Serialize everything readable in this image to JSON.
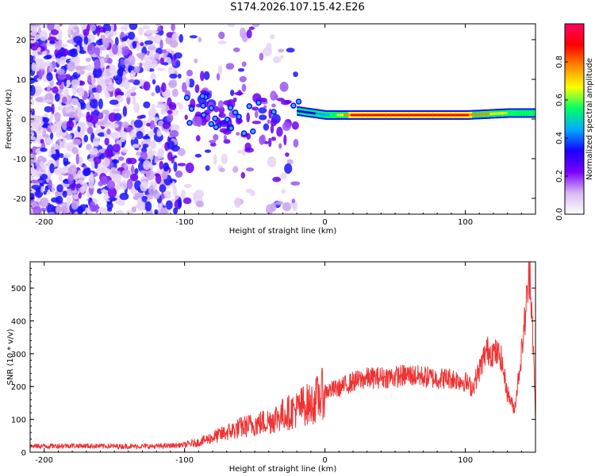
{
  "title": "S174.2026.107.15.42.E26",
  "chart_data": [
    {
      "type": "heatmap",
      "xlabel": "Height of straight line (km)",
      "ylabel": "Frequency (Hz)",
      "xlim": [
        -210,
        150
      ],
      "ylim": [
        -24,
        24
      ],
      "x_ticks": [
        -200,
        -100,
        0,
        100
      ],
      "y_ticks": [
        -20,
        -10,
        0,
        10,
        20
      ],
      "colorbar": {
        "label": "Normalized spectral amplitude",
        "range": [
          0.0,
          1.0
        ],
        "ticks": [
          "0.0",
          "0.2",
          "0.4",
          "0.6",
          "0.8"
        ],
        "colors": [
          "#ffffff",
          "#d8b8f0",
          "#7a00ff",
          "#1a00ff",
          "#00aaff",
          "#00ff66",
          "#ffff00",
          "#ff8800",
          "#ff0000",
          "#ff0066"
        ]
      },
      "ridge": {
        "description": "strong narrow band near 1 Hz",
        "x": [
          -20,
          0,
          20,
          60,
          100,
          130,
          150
        ],
        "freq_hz": [
          2,
          1,
          1,
          1,
          1,
          1.5,
          1.5
        ],
        "amplitude": [
          0.3,
          0.45,
          0.9,
          0.9,
          0.85,
          0.6,
          0.5
        ]
      },
      "noise_region": {
        "x_range": [
          -210,
          -20
        ],
        "freq_range_hz": [
          -24,
          24
        ]
      }
    },
    {
      "type": "line",
      "xlabel": "Height of straight line (km)",
      "ylabel": "SNR (10 * v/v)",
      "xlim": [
        -210,
        150
      ],
      "ylim": [
        0,
        580
      ],
      "x_ticks": [
        -200,
        -100,
        0,
        100
      ],
      "y_ticks": [
        0,
        100,
        200,
        300,
        400,
        500
      ],
      "color": "#ee3333",
      "series": [
        {
          "name": "SNR",
          "x": [
            -210,
            -180,
            -150,
            -120,
            -100,
            -90,
            -80,
            -70,
            -60,
            -50,
            -40,
            -30,
            -20,
            -15,
            -10,
            0,
            10,
            20,
            30,
            40,
            50,
            60,
            70,
            80,
            90,
            100,
            105,
            110,
            115,
            120,
            125,
            130,
            135,
            140,
            143,
            146,
            148,
            150
          ],
          "y": [
            18,
            20,
            18,
            18,
            22,
            30,
            45,
            60,
            75,
            85,
            95,
            115,
            130,
            145,
            145,
            185,
            195,
            215,
            225,
            228,
            230,
            235,
            230,
            225,
            225,
            215,
            195,
            250,
            310,
            305,
            295,
            180,
            130,
            300,
            430,
            560,
            380,
            100
          ]
        }
      ]
    }
  ]
}
